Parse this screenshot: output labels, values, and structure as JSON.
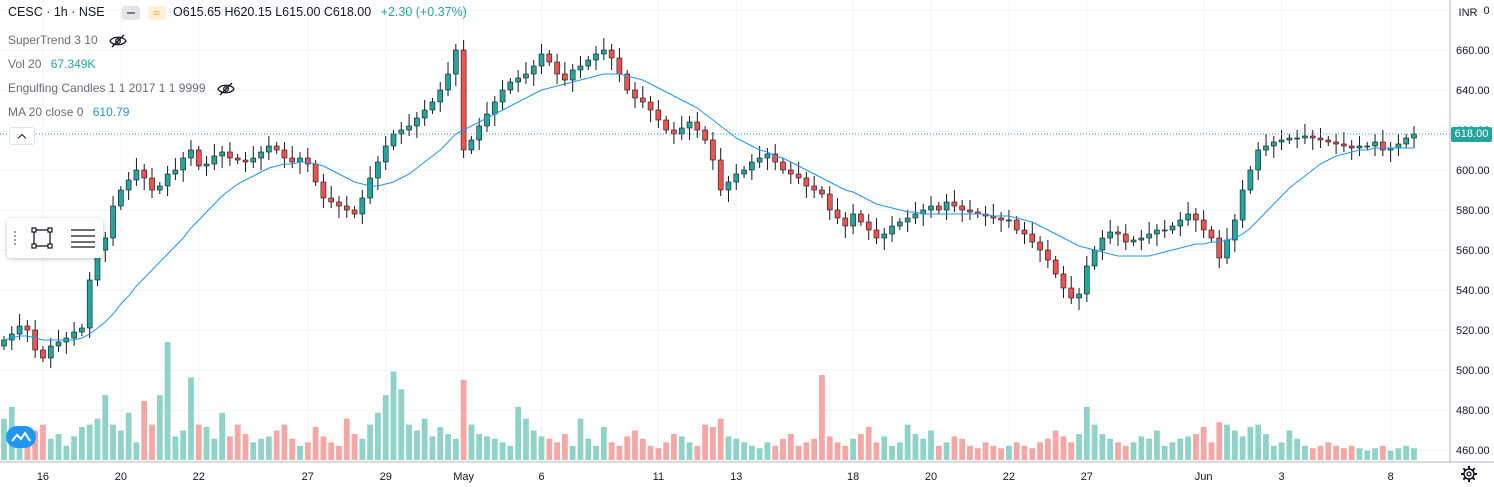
{
  "header": {
    "symbol": "CESC · 1h · NSE",
    "open_label": "O",
    "open": "615.65",
    "high_label": "H",
    "high": "620.15",
    "low_label": "L",
    "low": "615.00",
    "close_label": "C",
    "close": "618.00",
    "change": "+2.30 (+0.37%)",
    "toggle_orange_glyph": "≈"
  },
  "indicators": {
    "supertrend": {
      "name": "SuperTrend 3 10"
    },
    "volume": {
      "name": "Vol 20",
      "value": "67.349K"
    },
    "engulfing": {
      "name": "Engulfing Candles 1 1 2017 1 1 9999"
    },
    "ma": {
      "name": "MA 20 close 0",
      "value": "610.79"
    }
  },
  "price_axis": {
    "currency": "INR",
    "last_price_label": "618.00"
  },
  "colors": {
    "up": "#26a69a",
    "down": "#ef5350",
    "ma": "#2196f3",
    "vol_up": "#8fd3c8",
    "vol_down": "#f5a7a5",
    "grid": "#f0f3fa"
  },
  "chart_data": {
    "type": "candlestick",
    "ylim": [
      454,
      685
    ],
    "y_ticks": [
      460,
      480,
      500,
      520,
      540,
      560,
      580,
      600,
      620,
      640,
      660,
      680
    ],
    "y_tick_labels": [
      "460.00",
      "480.00",
      "500.00",
      "520.00",
      "540.00",
      "560.00",
      "580.00",
      "600.00",
      "620.00",
      "640.00",
      "660.00",
      "680.00"
    ],
    "x_tick_labels": [
      {
        "i": 5,
        "label": "16"
      },
      {
        "i": 15,
        "label": "20"
      },
      {
        "i": 25,
        "label": "22"
      },
      {
        "i": 39,
        "label": "27"
      },
      {
        "i": 49,
        "label": "29"
      },
      {
        "i": 59,
        "label": "May"
      },
      {
        "i": 69,
        "label": "6"
      },
      {
        "i": 84,
        "label": "11"
      },
      {
        "i": 94,
        "label": "13"
      },
      {
        "i": 109,
        "label": "18"
      },
      {
        "i": 119,
        "label": "20"
      },
      {
        "i": 129,
        "label": "22"
      },
      {
        "i": 139,
        "label": "27"
      },
      {
        "i": 154,
        "label": "Jun"
      },
      {
        "i": 164,
        "label": "3"
      },
      {
        "i": 178,
        "label": "8"
      }
    ],
    "closes": [
      515,
      518,
      522,
      520,
      510,
      506,
      512,
      514,
      516,
      519,
      521,
      545,
      560,
      566,
      582,
      590,
      595,
      600,
      596,
      590,
      592,
      598,
      600,
      606,
      610,
      602,
      603,
      607,
      609,
      606,
      605,
      604,
      606,
      609,
      612,
      610,
      606,
      604,
      606,
      603,
      594,
      586,
      584,
      582,
      580,
      578,
      586,
      596,
      604,
      612,
      618,
      620,
      622,
      626,
      630,
      634,
      640,
      648,
      660,
      610,
      615,
      622,
      628,
      634,
      640,
      644,
      646,
      648,
      652,
      658,
      654,
      648,
      645,
      650,
      652,
      655,
      658,
      660,
      656,
      648,
      640,
      636,
      634,
      630,
      625,
      620,
      618,
      621,
      624,
      620,
      615,
      605,
      590,
      594,
      598,
      600,
      604,
      606,
      608,
      604,
      600,
      598,
      596,
      592,
      590,
      588,
      580,
      576,
      572,
      578,
      574,
      570,
      566,
      568,
      572,
      574,
      576,
      578,
      580,
      582,
      580,
      584,
      582,
      580,
      579,
      578,
      577,
      576,
      575,
      575,
      570,
      568,
      564,
      560,
      555,
      548,
      541,
      536,
      538,
      552,
      560,
      566,
      569,
      568,
      564,
      565,
      566,
      568,
      570,
      570,
      572,
      575,
      578,
      575,
      570,
      566,
      556,
      565,
      575,
      590,
      600,
      610,
      612,
      614,
      615,
      616,
      616,
      617,
      616,
      615,
      614,
      613,
      612,
      611,
      612,
      612,
      614,
      610,
      611,
      613,
      616,
      618
    ],
    "ma20": [
      515,
      516,
      517,
      517,
      516,
      515,
      515,
      515,
      515,
      515,
      516,
      518,
      521,
      524,
      528,
      533,
      537,
      542,
      546,
      550,
      554,
      558,
      562,
      566,
      571,
      575,
      579,
      583,
      587,
      590,
      593,
      595,
      597,
      599,
      601,
      602,
      603,
      603,
      604,
      604,
      603,
      602,
      600,
      598,
      596,
      594,
      593,
      592,
      592,
      593,
      594,
      596,
      598,
      601,
      604,
      607,
      610,
      614,
      618,
      620,
      622,
      624,
      626,
      628,
      630,
      632,
      634,
      636,
      638,
      640,
      641,
      642,
      643,
      644,
      645,
      646,
      647,
      648,
      648,
      648,
      647,
      646,
      645,
      643,
      641,
      639,
      637,
      635,
      633,
      631,
      628,
      625,
      622,
      619,
      616,
      614,
      612,
      610,
      609,
      607,
      606,
      604,
      602,
      600,
      598,
      596,
      594,
      592,
      590,
      589,
      587,
      585,
      583,
      582,
      581,
      580,
      579,
      579,
      578,
      578,
      578,
      578,
      578,
      578,
      578,
      578,
      578,
      577,
      577,
      577,
      576,
      575,
      574,
      572,
      570,
      568,
      566,
      564,
      562,
      561,
      560,
      559,
      558,
      557,
      557,
      557,
      557,
      557,
      558,
      559,
      560,
      561,
      562,
      563,
      563,
      564,
      564,
      565,
      566,
      568,
      571,
      575,
      579,
      583,
      587,
      591,
      594,
      597,
      600,
      603,
      605,
      607,
      608,
      609,
      610,
      610,
      611,
      611,
      611,
      611,
      611,
      611
    ],
    "volume_ratio": [
      0.35,
      0.45,
      0.2,
      0.15,
      0.25,
      0.3,
      0.18,
      0.22,
      0.12,
      0.2,
      0.28,
      0.3,
      0.35,
      0.55,
      0.3,
      0.25,
      0.4,
      0.15,
      0.5,
      0.3,
      0.55,
      1.0,
      0.2,
      0.25,
      0.7,
      0.3,
      0.28,
      0.18,
      0.4,
      0.2,
      0.3,
      0.22,
      0.15,
      0.18,
      0.2,
      0.25,
      0.3,
      0.18,
      0.12,
      0.15,
      0.28,
      0.2,
      0.15,
      0.12,
      0.35,
      0.22,
      0.18,
      0.3,
      0.4,
      0.55,
      0.75,
      0.6,
      0.3,
      0.25,
      0.35,
      0.2,
      0.28,
      0.22,
      0.18,
      0.68,
      0.3,
      0.22,
      0.2,
      0.18,
      0.15,
      0.12,
      0.45,
      0.35,
      0.25,
      0.2,
      0.18,
      0.15,
      0.22,
      0.12,
      0.35,
      0.18,
      0.12,
      0.28,
      0.15,
      0.12,
      0.2,
      0.25,
      0.18,
      0.12,
      0.1,
      0.15,
      0.22,
      0.2,
      0.15,
      0.12,
      0.3,
      0.28,
      0.35,
      0.2,
      0.18,
      0.15,
      0.12,
      0.1,
      0.15,
      0.12,
      0.18,
      0.22,
      0.12,
      0.15,
      0.18,
      0.72,
      0.2,
      0.15,
      0.12,
      0.18,
      0.22,
      0.28,
      0.15,
      0.2,
      0.12,
      0.15,
      0.3,
      0.22,
      0.18,
      0.25,
      0.12,
      0.15,
      0.2,
      0.18,
      0.12,
      0.1,
      0.15,
      0.12,
      0.1,
      0.12,
      0.15,
      0.12,
      0.1,
      0.15,
      0.18,
      0.25,
      0.2,
      0.15,
      0.22,
      0.45,
      0.3,
      0.22,
      0.18,
      0.15,
      0.12,
      0.15,
      0.2,
      0.18,
      0.25,
      0.12,
      0.15,
      0.18,
      0.2,
      0.22,
      0.28,
      0.15,
      0.32,
      0.3,
      0.25,
      0.2,
      0.28,
      0.3,
      0.22,
      0.12,
      0.15,
      0.25,
      0.18,
      0.12,
      0.1,
      0.12,
      0.15,
      0.12,
      0.1,
      0.12,
      0.1,
      0.08,
      0.1,
      0.12,
      0.08,
      0.1,
      0.12,
      0.1
    ]
  }
}
